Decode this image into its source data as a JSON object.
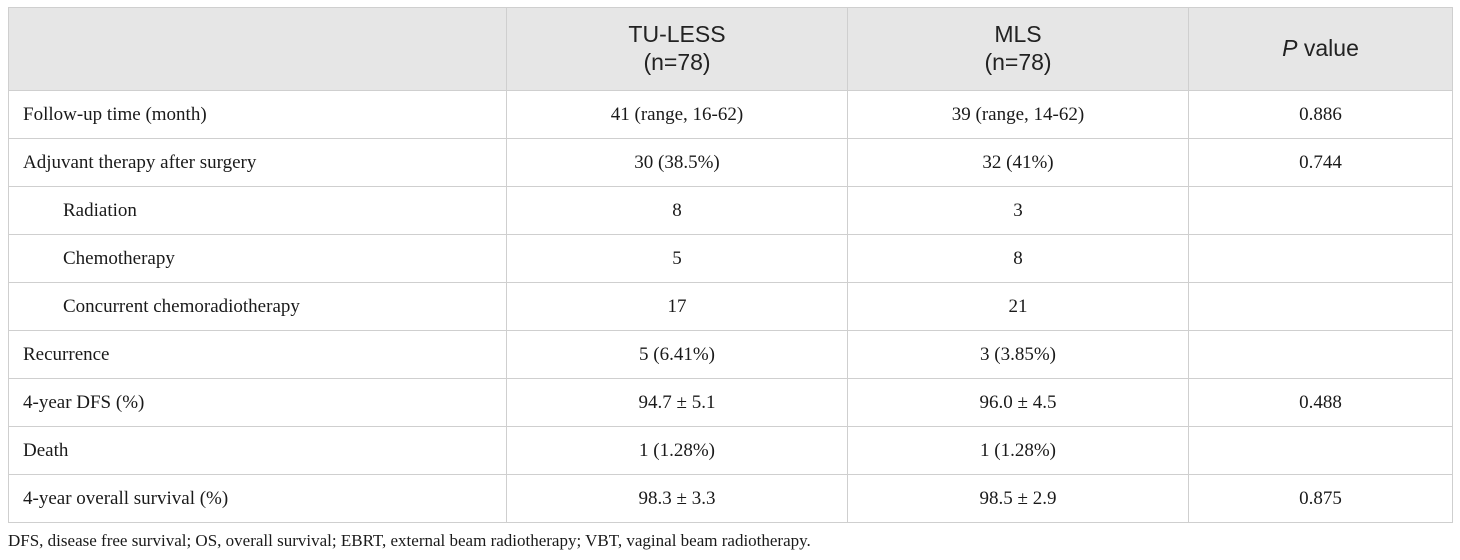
{
  "table": {
    "header": {
      "col0": "",
      "col1_line1": "TU-LESS",
      "col1_line2": "(n=78)",
      "col2_line1": "MLS",
      "col2_line2": "(n=78)",
      "col3_italic": "P",
      "col3_rest": " value"
    },
    "rows": [
      {
        "label": "Follow-up time (month)",
        "tuless": "41 (range, 16-62)",
        "mls": "39 (range, 14-62)",
        "p": "0.886",
        "indent": false
      },
      {
        "label": "Adjuvant therapy after surgery",
        "tuless": "30 (38.5%)",
        "mls": "32 (41%)",
        "p": "0.744",
        "indent": false
      },
      {
        "label": "Radiation",
        "tuless": "8",
        "mls": "3",
        "p": "",
        "indent": true
      },
      {
        "label": "Chemotherapy",
        "tuless": "5",
        "mls": "8",
        "p": "",
        "indent": true
      },
      {
        "label": "Concurrent chemoradiotherapy",
        "tuless": "17",
        "mls": "21",
        "p": "",
        "indent": true
      },
      {
        "label": "Recurrence",
        "tuless": "5 (6.41%)",
        "mls": "3 (3.85%)",
        "p": "",
        "indent": false
      },
      {
        "label": "4-year DFS (%)",
        "tuless": "94.7 ± 5.1",
        "mls": "96.0 ± 4.5",
        "p": "0.488",
        "indent": false
      },
      {
        "label": "Death",
        "tuless": "1 (1.28%)",
        "mls": "1 (1.28%)",
        "p": "",
        "indent": false
      },
      {
        "label": "4-year overall survival (%)",
        "tuless": "98.3 ± 3.3",
        "mls": "98.5 ± 2.9",
        "p": "0.875",
        "indent": false
      }
    ]
  },
  "footnote": "DFS, disease free survival; OS, overall survival; EBRT, external beam radiotherapy; VBT, vaginal beam radiotherapy."
}
